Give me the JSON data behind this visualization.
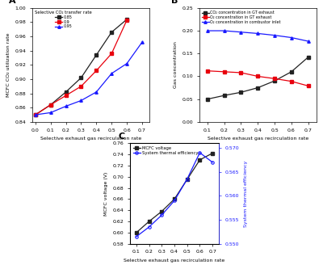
{
  "panel_A": {
    "title": "A",
    "xlabel": "Selective exhaust gas recirculation rate",
    "ylabel": "MCFC CO₂ utilization rate",
    "legend_title": "Selective CO₂ transfer rate",
    "xlim": [
      -0.02,
      0.75
    ],
    "ylim": [
      0.84,
      1.0
    ],
    "xticks": [
      0.0,
      0.1,
      0.2,
      0.3,
      0.4,
      0.5,
      0.6,
      0.7
    ],
    "yticks": [
      0.84,
      0.86,
      0.88,
      0.9,
      0.92,
      0.94,
      0.96,
      0.98,
      1.0
    ],
    "series": [
      {
        "label": "0.85",
        "color": "#222222",
        "marker": "s",
        "x": [
          0.0,
          0.1,
          0.2,
          0.3,
          0.4,
          0.5,
          0.6
        ],
        "y": [
          0.85,
          0.864,
          0.882,
          0.902,
          0.934,
          0.966,
          0.984
        ]
      },
      {
        "label": "0.9",
        "color": "#e8000d",
        "marker": "s",
        "x": [
          0.0,
          0.1,
          0.2,
          0.3,
          0.4,
          0.5,
          0.6
        ],
        "y": [
          0.85,
          0.864,
          0.877,
          0.89,
          0.912,
          0.936,
          0.983
        ]
      },
      {
        "label": "0.95",
        "color": "#1a1aff",
        "marker": "^",
        "x": [
          0.0,
          0.1,
          0.2,
          0.3,
          0.4,
          0.5,
          0.6,
          0.7
        ],
        "y": [
          0.85,
          0.853,
          0.862,
          0.87,
          0.882,
          0.908,
          0.922,
          0.952
        ]
      }
    ]
  },
  "panel_B": {
    "title": "B",
    "xlabel": "Selective exhaust gas recirculation rate",
    "ylabel": "Gas concentration",
    "xlim": [
      0.05,
      0.75
    ],
    "ylim": [
      0.0,
      0.25
    ],
    "xticks": [
      0.1,
      0.2,
      0.3,
      0.4,
      0.5,
      0.6,
      0.7
    ],
    "yticks": [
      0.0,
      0.05,
      0.1,
      0.15,
      0.2,
      0.25
    ],
    "series": [
      {
        "label": "CO₂ concentration in GT exhaust",
        "color": "#222222",
        "marker": "s",
        "x": [
          0.1,
          0.2,
          0.3,
          0.4,
          0.5,
          0.6,
          0.7
        ],
        "y": [
          0.05,
          0.058,
          0.065,
          0.075,
          0.09,
          0.11,
          0.142
        ]
      },
      {
        "label": "O₂ concentration in GT exhaust",
        "color": "#e8000d",
        "marker": "s",
        "x": [
          0.1,
          0.2,
          0.3,
          0.4,
          0.5,
          0.6,
          0.7
        ],
        "y": [
          0.112,
          0.11,
          0.108,
          0.1,
          0.095,
          0.089,
          0.079
        ]
      },
      {
        "label": "O₂ concentration in combustor inlet",
        "color": "#1a1aff",
        "marker": "^",
        "x": [
          0.1,
          0.2,
          0.3,
          0.4,
          0.5,
          0.6,
          0.7
        ],
        "y": [
          0.2,
          0.2,
          0.197,
          0.194,
          0.19,
          0.185,
          0.177
        ]
      }
    ]
  },
  "panel_C": {
    "title": "C",
    "xlabel": "Selective exhaust gas recirculation rate",
    "ylabel_left": "MCFC voltage (V)",
    "ylabel_right": "System thermal efficiency",
    "xlim": [
      0.05,
      0.75
    ],
    "ylim_left": [
      0.58,
      0.76
    ],
    "ylim_right": [
      0.55,
      0.571
    ],
    "xticks": [
      0.1,
      0.2,
      0.3,
      0.4,
      0.5,
      0.6,
      0.7
    ],
    "yticks_left": [
      0.58,
      0.6,
      0.62,
      0.64,
      0.66,
      0.68,
      0.7,
      0.72,
      0.74,
      0.76
    ],
    "yticks_right": [
      0.55,
      0.555,
      0.56,
      0.565,
      0.57
    ],
    "series_left": {
      "label": "MCFC voltage",
      "color": "#222222",
      "marker": "s",
      "x": [
        0.1,
        0.2,
        0.3,
        0.4,
        0.5,
        0.6,
        0.7
      ],
      "y": [
        0.6,
        0.62,
        0.638,
        0.66,
        0.695,
        0.73,
        0.742
      ]
    },
    "series_right": {
      "label": "System thermal efficiency",
      "color": "#1a1aff",
      "marker": "o",
      "x": [
        0.1,
        0.2,
        0.3,
        0.4,
        0.5,
        0.6,
        0.7
      ],
      "y": [
        0.5515,
        0.5535,
        0.556,
        0.559,
        0.5635,
        0.569,
        0.567
      ]
    }
  },
  "bg_color": "#ffffff"
}
